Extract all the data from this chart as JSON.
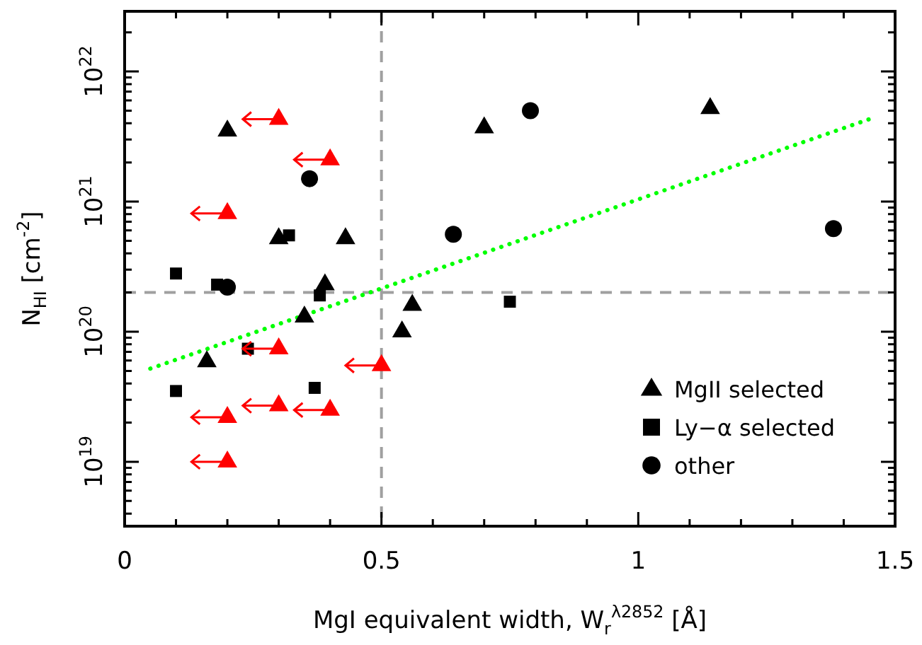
{
  "chart_data": {
    "type": "scatter",
    "xlabel": "MgI equivalent width, W$_{r}$$^{λ2852}$ [Å]",
    "ylabel": "N$_{HI}$ [cm$^{-2}$]",
    "xlim": [
      0,
      1.5
    ],
    "ylim": [
      3.2e+18,
      2.9e+22
    ],
    "log": "y",
    "grid": false,
    "legend": "bottom right",
    "xticks": [
      0,
      {
        "value": 0.1,
        "label": null
      },
      {
        "value": 0.2,
        "label": null
      },
      {
        "value": 0.3,
        "label": null
      },
      {
        "value": 0.4,
        "label": null
      },
      0.5,
      {
        "value": 0.6,
        "label": null
      },
      {
        "value": 0.7,
        "label": null
      },
      {
        "value": 0.8,
        "label": null
      },
      {
        "value": 0.9,
        "label": null
      },
      1,
      {
        "value": 1.1,
        "label": null
      },
      {
        "value": 1.2,
        "label": null
      },
      {
        "value": 1.3,
        "label": null
      },
      {
        "value": 1.4,
        "label": null
      },
      1.5
    ],
    "yticks": [
      {
        "value": 4e+18,
        "label": null
      },
      {
        "value": 5e+18,
        "label": null
      },
      {
        "value": 6e+18,
        "label": null
      },
      {
        "value": 7e+18,
        "label": null
      },
      {
        "value": 8e+18,
        "label": null
      },
      {
        "value": 9e+18,
        "label": null
      },
      {
        "value": 1e+19,
        "label": "10$^{19}$"
      },
      {
        "value": 2e+19,
        "label": null
      },
      {
        "value": 3e+19,
        "label": null
      },
      {
        "value": 4e+19,
        "label": null
      },
      {
        "value": 5e+19,
        "label": null
      },
      {
        "value": 6e+19,
        "label": null
      },
      {
        "value": 7e+19,
        "label": null
      },
      {
        "value": 8e+19,
        "label": null
      },
      {
        "value": 9e+19,
        "label": null
      },
      {
        "value": 1e+20,
        "label": "10$^{20}$"
      },
      {
        "value": 2e+20,
        "label": null
      },
      {
        "value": 3e+20,
        "label": null
      },
      {
        "value": 4e+20,
        "label": null
      },
      {
        "value": 5e+20,
        "label": null
      },
      {
        "value": 6e+20,
        "label": null
      },
      {
        "value": 7e+20,
        "label": null
      },
      {
        "value": 8e+20,
        "label": null
      },
      {
        "value": 9e+20,
        "label": null
      },
      {
        "value": 1e+21,
        "label": "10$^{21}$"
      },
      {
        "value": 2e+21,
        "label": null
      },
      {
        "value": 3e+21,
        "label": null
      },
      {
        "value": 4e+21,
        "label": null
      },
      {
        "value": 5e+21,
        "label": null
      },
      {
        "value": 6e+21,
        "label": null
      },
      {
        "value": 7e+21,
        "label": null
      },
      {
        "value": 8e+21,
        "label": null
      },
      {
        "value": 9e+21,
        "label": null
      },
      {
        "value": 1e+22,
        "label": "10$^{22}$"
      },
      {
        "value": 2e+22,
        "label": null
      }
    ],
    "ref_lines": [
      {
        "axis": "y",
        "value": 2e+20,
        "color": "#a0a0a0",
        "line_style": "dashed"
      },
      {
        "axis": "x",
        "value": 0.5,
        "color": "#a0a0a0",
        "line_style": "dashed"
      }
    ],
    "series": [
      {
        "name": "MgII selected",
        "color": "#000000",
        "marker": "triangle",
        "x": [
          0.2,
          0.3,
          0.43,
          0.39,
          0.35,
          0.16,
          0.56,
          0.54,
          0.7,
          1.14
        ],
        "values": [
          3.5e+21,
          5.2e+20,
          5.2e+20,
          2.3e+20,
          1.3e+20,
          5.9e+19,
          1.6e+20,
          1e+20,
          3.7e+21,
          5.2e+21
        ]
      },
      {
        "name": "Ly−α selected",
        "color": "#000000",
        "marker": "square",
        "x": [
          0.1,
          0.18,
          0.32,
          0.38,
          0.24,
          0.1,
          0.37,
          0.75
        ],
        "values": [
          2.8e+20,
          2.3e+20,
          5.5e+20,
          1.9e+20,
          7.4e+19,
          3.5e+19,
          3.7e+19,
          1.7e+20
        ]
      },
      {
        "name": "other",
        "color": "#000000",
        "marker": "circle",
        "x": [
          0.2,
          0.36,
          0.64,
          0.79,
          1.38
        ],
        "values": [
          2.2e+20,
          1.5e+21,
          5.6e+20,
          5e+21,
          6.2e+20
        ]
      },
      {
        "color": "#ff0000",
        "marker": "triangle",
        "x": [
          0.3,
          0.4,
          0.2,
          0.3,
          0.5,
          0.3,
          0.4,
          0.2,
          0.2
        ],
        "values": [
          4.3e+21,
          2.1e+21,
          8.1e+20,
          7.4e+19,
          5.5e+19,
          2.7e+19,
          2.5e+19,
          2.2e+19,
          1e+19
        ],
        "xerrors": [
          [
            0.23,
            0.3
          ],
          [
            0.33,
            0.4
          ],
          [
            0.13,
            0.2
          ],
          [
            0.23,
            0.3
          ],
          [
            0.43,
            0.5
          ],
          [
            0.23,
            0.3
          ],
          [
            0.33,
            0.4
          ],
          [
            0.13,
            0.2
          ],
          [
            0.13,
            0.2
          ]
        ]
      },
      {
        "type": "line",
        "color": "#00ff00",
        "marker": "none",
        "line_style": "dotted",
        "x": [
          0.05,
          1.45
        ],
        "values": [
          5.2e+19,
          4.3e+21
        ]
      }
    ]
  }
}
